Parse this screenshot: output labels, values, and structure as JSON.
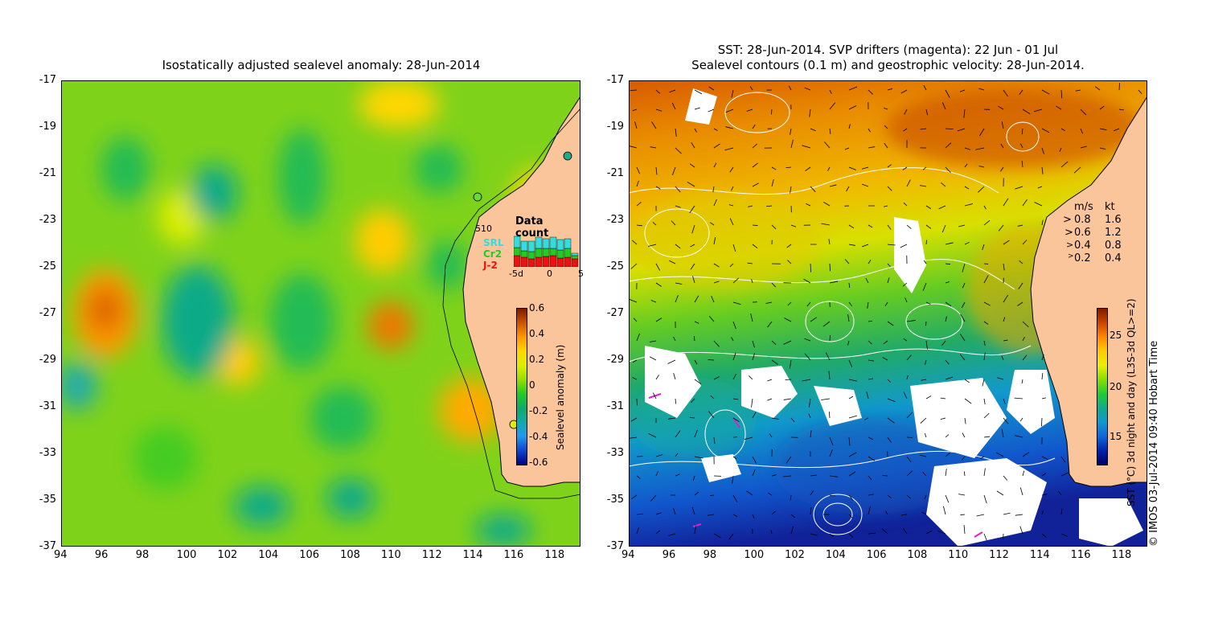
{
  "left_panel": {
    "title": "Isostatically adjusted sealevel anomaly: 28-Jun-2014",
    "lat_ticks": [
      "-17",
      "-19",
      "-21",
      "-23",
      "-25",
      "-27",
      "-29",
      "-31",
      "-33",
      "-35",
      "-37"
    ],
    "lon_ticks": [
      "94",
      "96",
      "98",
      "100",
      "102",
      "104",
      "106",
      "108",
      "110",
      "112",
      "114",
      "116",
      "118"
    ],
    "data_count": {
      "title": "Data count",
      "max_label": "510",
      "sat_srl": "SRL",
      "sat_cr2": "Cr2",
      "sat_j2": "J-2",
      "axis_labels": [
        "-5d",
        "0",
        "5"
      ],
      "colors": {
        "srl": "#33dddd",
        "cr2": "#22cc22",
        "j2": "#ee1111"
      }
    },
    "colorbar": {
      "label": "Sealevel anomaly (m)",
      "ticks": [
        "0.6",
        "0.4",
        "0.2",
        "0",
        "-0.2",
        "-0.4",
        "-0.6"
      ],
      "colors": [
        "#7a1a00",
        "#cc5500",
        "#ff9900",
        "#ffd700",
        "#ddee00",
        "#99dd00",
        "#22cc22",
        "#11aa66",
        "#11aaaa",
        "#2299ee",
        "#1144cc",
        "#000080"
      ]
    }
  },
  "right_panel": {
    "title_line1": "SST: 28-Jun-2014. SVP drifters (magenta): 22 Jun - 01 Jul",
    "title_line2": "Sealevel contours (0.1 m) and geostrophic velocity: 28-Jun-2014.",
    "lat_ticks": [
      "-17",
      "-19",
      "-21",
      "-23",
      "-25",
      "-27",
      "-29",
      "-31",
      "-33",
      "-35",
      "-37"
    ],
    "lon_ticks": [
      "94",
      "96",
      "98",
      "100",
      "102",
      "104",
      "106",
      "108",
      "110",
      "112",
      "114",
      "116",
      "118"
    ],
    "velocity_legend": {
      "header_ms": "m/s",
      "header_kt": "kt",
      "rows": [
        {
          "ms": "0.8",
          "kt": "1.6"
        },
        {
          "ms": "0.6",
          "kt": "1.2"
        },
        {
          "ms": "0.4",
          "kt": "0.8"
        },
        {
          "ms": "0.2",
          "kt": "0.4"
        }
      ]
    },
    "colorbar": {
      "label": "SST (°C) 3d night and day (L3S-3d QL>=2)",
      "ticks": [
        "25",
        "20",
        "15"
      ],
      "colors": [
        "#801a00",
        "#cc4400",
        "#ff8800",
        "#ffcc00",
        "#eeee00",
        "#88dd00",
        "#22cc33",
        "#11aa88",
        "#1199cc",
        "#1166dd",
        "#0022aa",
        "#000066"
      ]
    },
    "credit": "© IMOS 03-Jul-2014 09:40 Hobart Time"
  },
  "palette": {
    "land": "#fac59a",
    "sla_base": "#7fd21a",
    "sst_base": "#e8b000"
  }
}
